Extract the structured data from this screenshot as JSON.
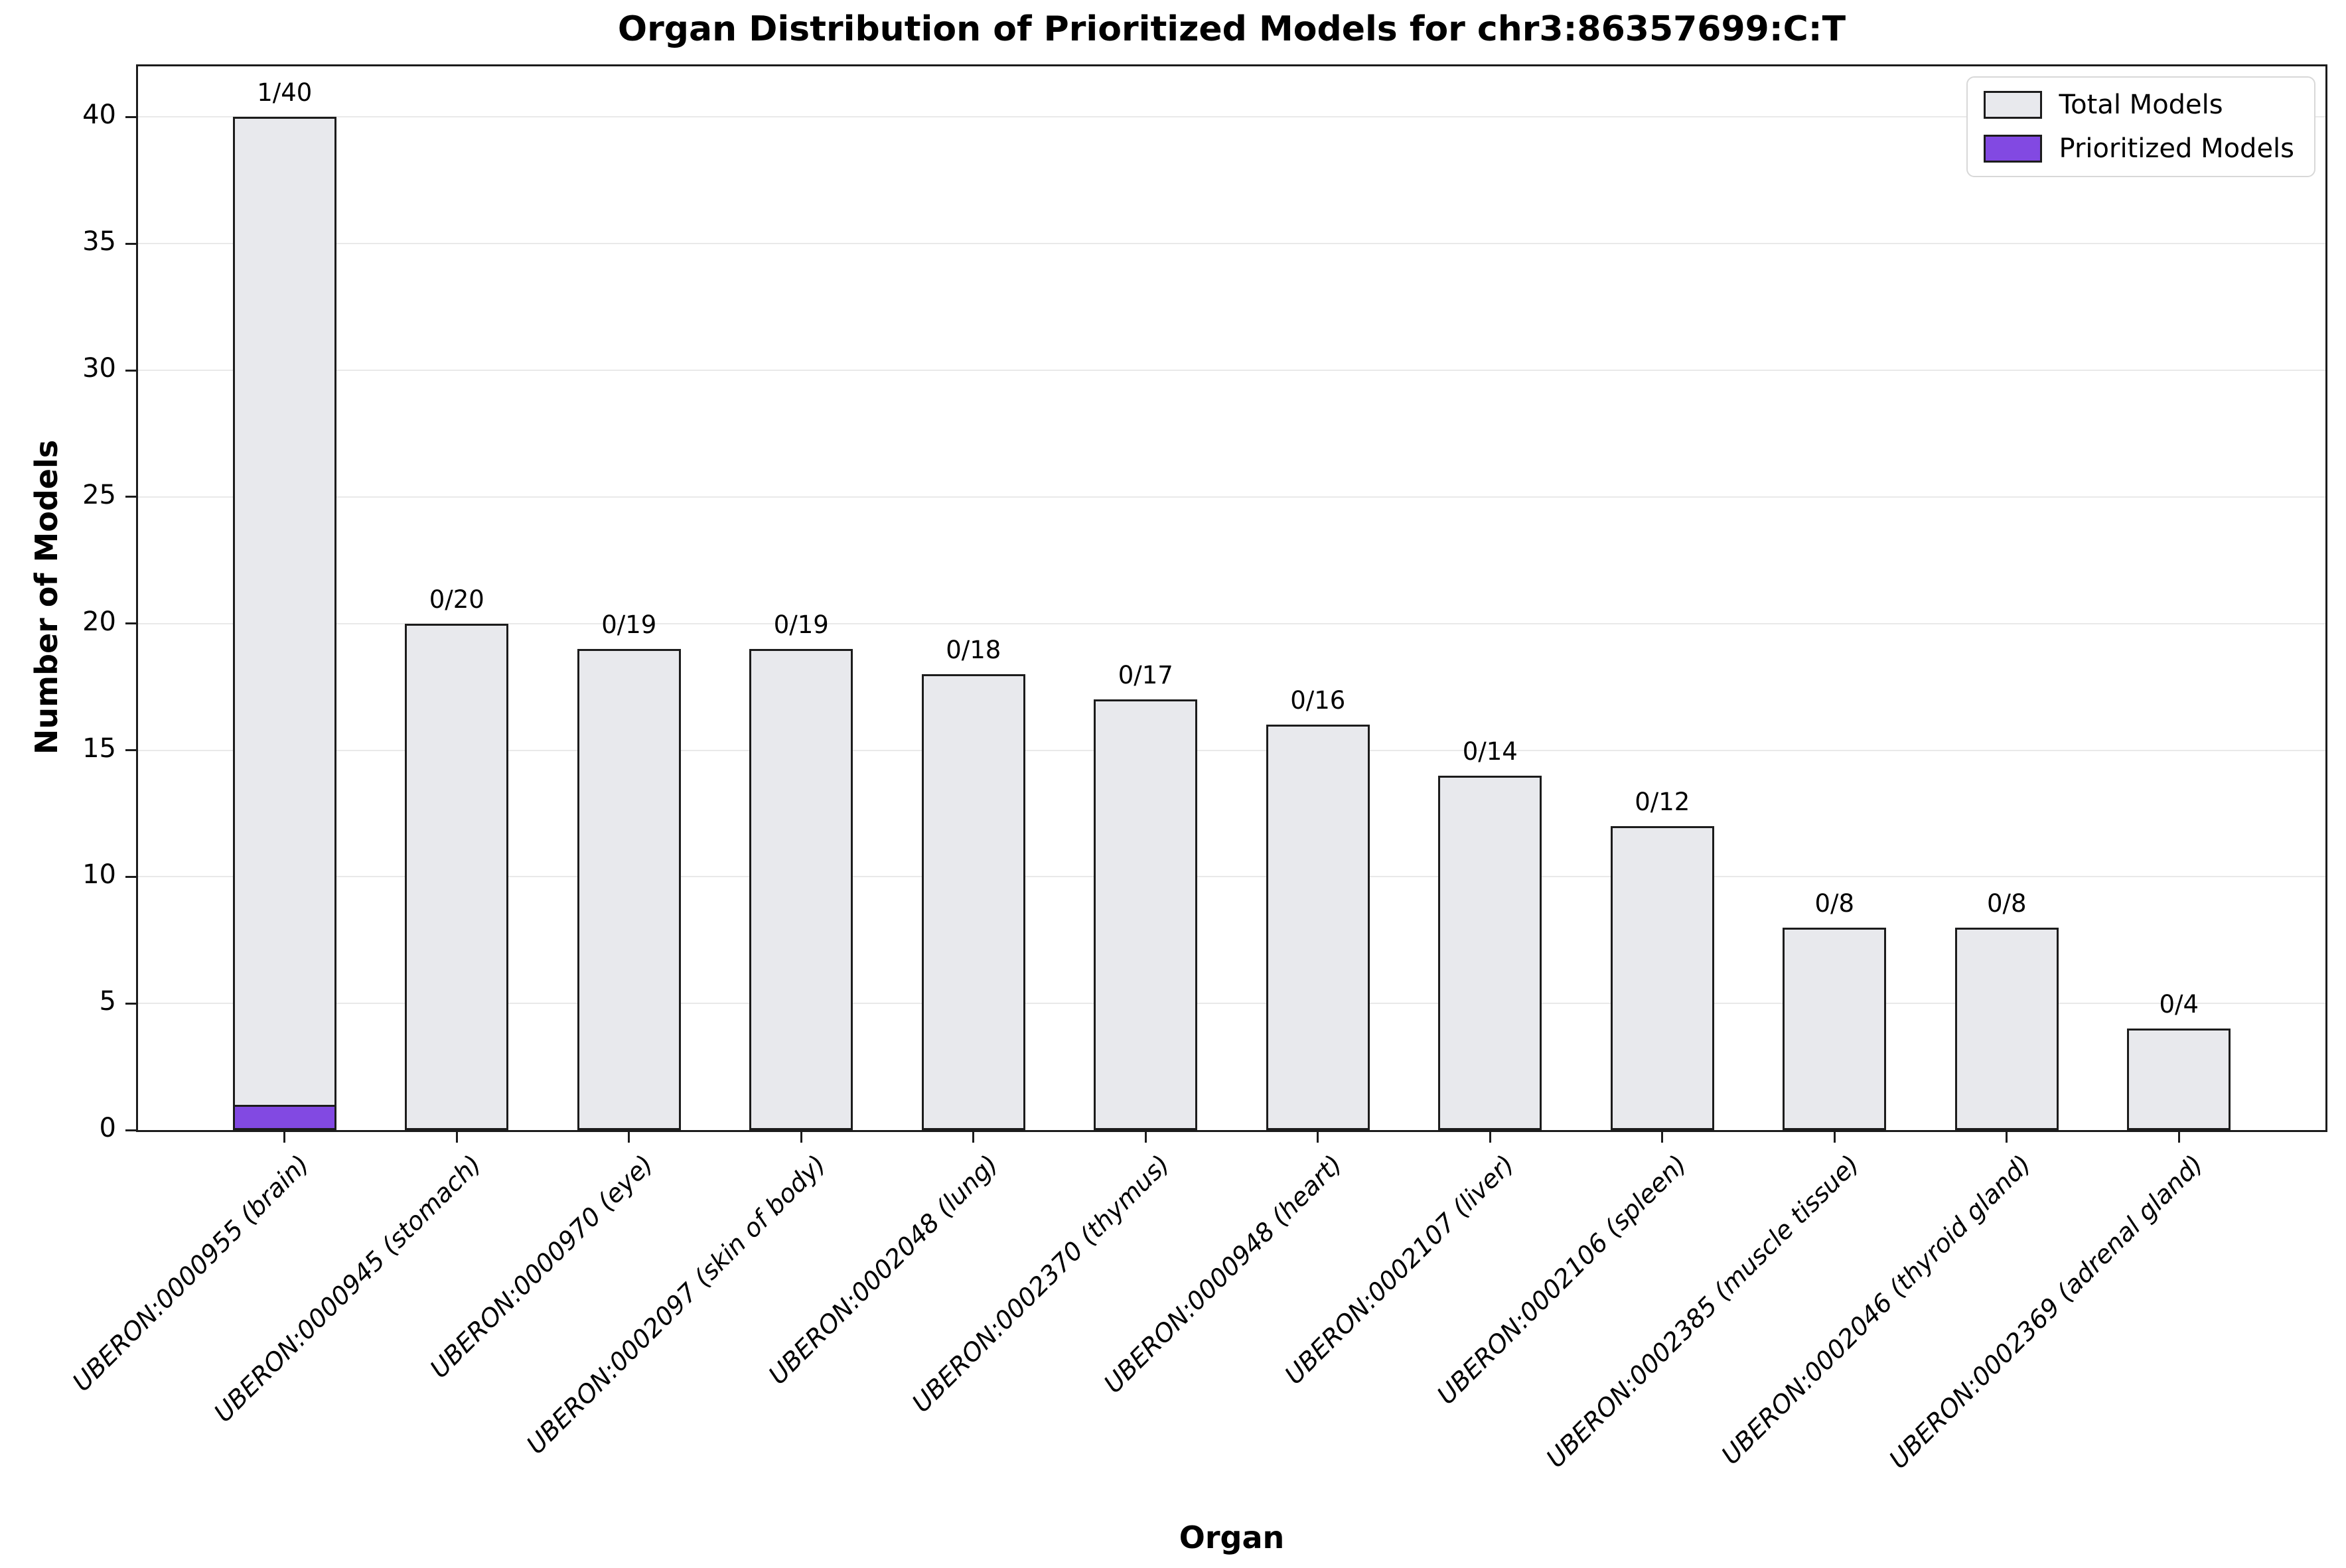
{
  "title": "Organ Distribution of Prioritized Models for chr3:86357699:C:T",
  "chart_data": {
    "type": "bar",
    "title": "Organ Distribution of Prioritized Models for chr3:86357699:C:T",
    "xlabel": "Organ",
    "ylabel": "Number of Models",
    "ylim": [
      0,
      42
    ],
    "yticks": [
      0,
      5,
      10,
      15,
      20,
      25,
      30,
      35,
      40
    ],
    "grid": "horizontal-only",
    "legend_position": "upper-right",
    "categories": [
      "UBERON:0000955 (brain)",
      "UBERON:0000945 (stomach)",
      "UBERON:0000970 (eye)",
      "UBERON:0002097 (skin of body)",
      "UBERON:0002048 (lung)",
      "UBERON:0002370 (thymus)",
      "UBERON:0000948 (heart)",
      "UBERON:0002107 (liver)",
      "UBERON:0002106 (spleen)",
      "UBERON:0002385 (muscle tissue)",
      "UBERON:0002046 (thyroid gland)",
      "UBERON:0002369 (adrenal gland)"
    ],
    "series": [
      {
        "name": "Total Models",
        "values": [
          40,
          20,
          19,
          19,
          18,
          17,
          16,
          14,
          12,
          8,
          8,
          4
        ],
        "fill": "#e8e9ed",
        "edge": "#1c1c1c"
      },
      {
        "name": "Prioritized Models",
        "values": [
          1,
          0,
          0,
          0,
          0,
          0,
          0,
          0,
          0,
          0,
          0,
          0
        ],
        "fill": "#8249e2",
        "edge": "#1c1c1c"
      }
    ],
    "bar_labels": [
      "1/40",
      "0/20",
      "0/19",
      "0/19",
      "0/18",
      "0/17",
      "0/16",
      "0/14",
      "0/12",
      "0/8",
      "0/8",
      "0/4"
    ]
  },
  "legend": {
    "items": [
      {
        "label": "Total Models",
        "color": "#e8e9ed"
      },
      {
        "label": "Prioritized Models",
        "color": "#8249e2"
      }
    ]
  }
}
